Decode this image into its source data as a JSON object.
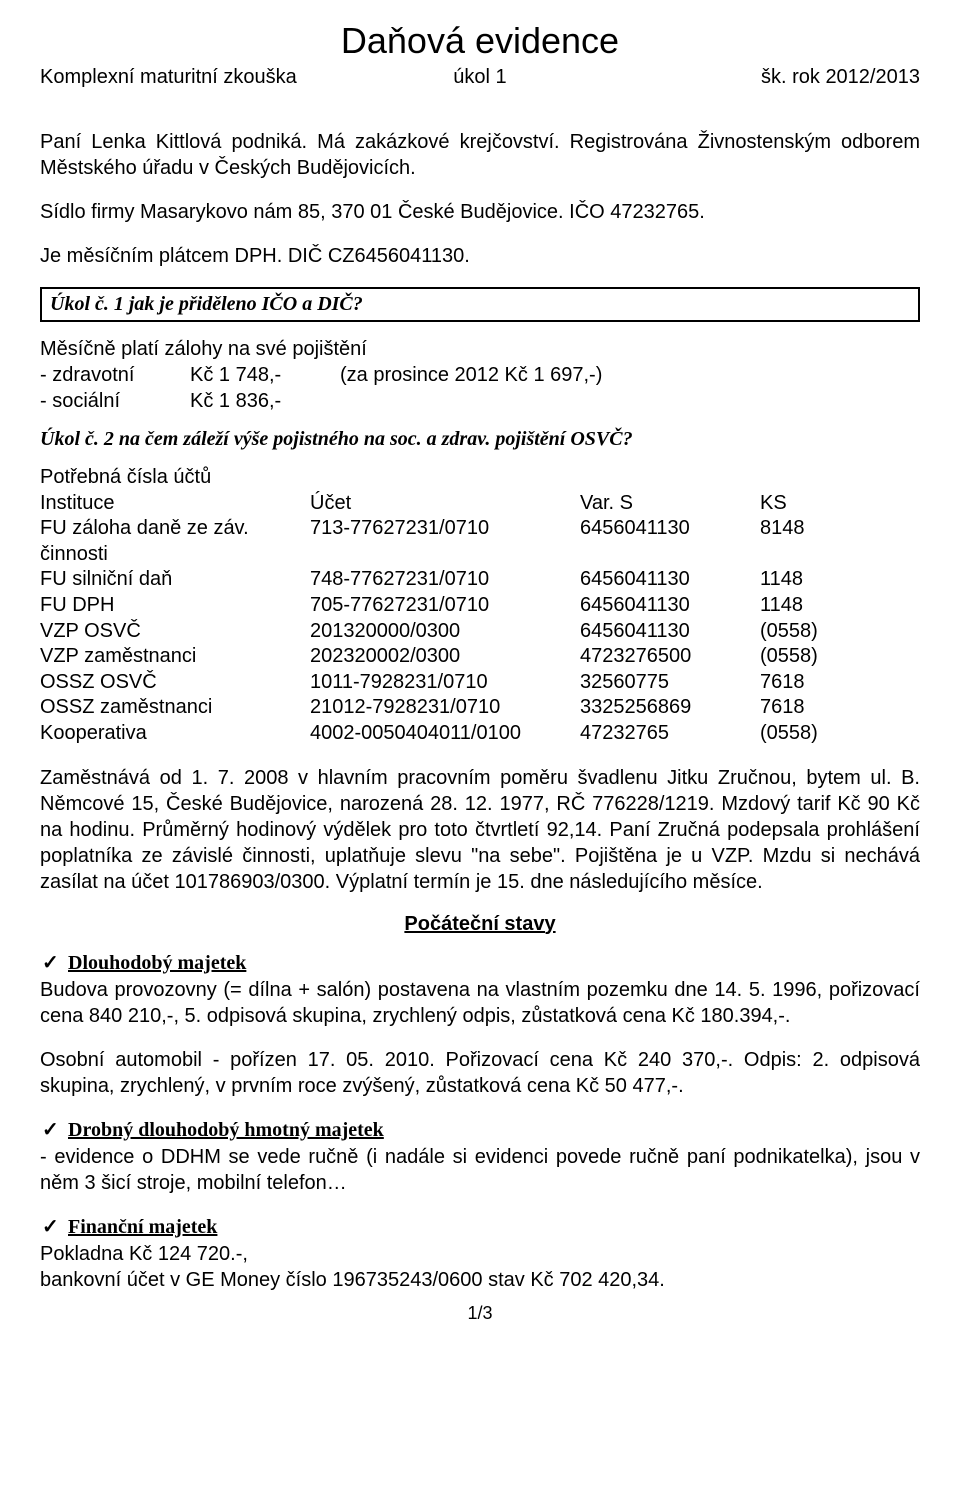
{
  "title": "Daňová evidence",
  "header": {
    "left": "Komplexní maturitní zkouška",
    "mid": "úkol 1",
    "right": "šk. rok 2012/2013"
  },
  "intro": {
    "p1": "Paní Lenka Kittlová podniká. Má zakázkové krejčovství. Registrována Živnostenským odborem Městského úřadu v Českých Budějovicích.",
    "p2": "Sídlo firmy Masarykovo nám 85, 370 01 České Budějovice. IČO 47232765.",
    "p3": "Je měsíčním plátcem DPH. DIČ CZ6456041130."
  },
  "task1": "Úkol č. 1 jak je přiděleno IČO a DIČ?",
  "zalohy": {
    "intro": "Měsíčně platí zálohy na své pojištění",
    "rows": [
      {
        "label": "- zdravotní",
        "amount": "Kč 1 748,-",
        "note": "(za prosince 2012 Kč 1 697,-)"
      },
      {
        "label": "- sociální",
        "amount": "Kč 1 836,-",
        "note": ""
      }
    ]
  },
  "task2": "Úkol č. 2 na čem záleží výše pojistného na soc. a zdrav. pojištění OSVČ?",
  "accounts": {
    "intro": "Potřebná čísla účtů",
    "header": {
      "a": "Instituce",
      "b": "Účet",
      "c": "Var. S",
      "d": "KS"
    },
    "rows": [
      {
        "a": "FU záloha daně ze záv. činnosti",
        "b": "713-77627231/0710",
        "c": "6456041130",
        "d": "8148"
      },
      {
        "a": "FU silniční daň",
        "b": "748-77627231/0710",
        "c": "6456041130",
        "d": "1148"
      },
      {
        "a": "FU DPH",
        "b": "705-77627231/0710",
        "c": "6456041130",
        "d": "1148"
      },
      {
        "a": "VZP OSVČ",
        "b": "201320000/0300",
        "c": "6456041130",
        "d": "(0558)"
      },
      {
        "a": "VZP zaměstnanci",
        "b": "202320002/0300",
        "c": "4723276500",
        "d": "(0558)"
      },
      {
        "a": "OSSZ OSVČ",
        "b": "1011-7928231/0710",
        "c": "32560775",
        "d": "7618"
      },
      {
        "a": "OSSZ zaměstnanci",
        "b": "21012-7928231/0710",
        "c": "3325256869",
        "d": "7618"
      },
      {
        "a": "Kooperativa",
        "b": "4002-0050404011/0100",
        "c": "47232765",
        "d": "(0558)"
      }
    ]
  },
  "employment": "Zaměstnává od 1. 7. 2008 v hlavním pracovním poměru švadlenu Jitku Zručnou, bytem ul. B. Němcové 15, České Budějovice, narozená 28. 12. 1977,  RČ 776228/1219. Mzdový tarif Kč 90 Kč na hodinu. Průměrný hodinový výdělek pro toto čtvrtletí 92,14. Paní Zručná podepsala prohlášení poplatníka ze závislé činnosti, uplatňuje slevu \"na sebe\". Pojištěna je u VZP.  Mzdu si nechává zasílat na účet 101786903/0300. Výplatní termín je 15. dne následujícího měsíce.",
  "section_heading": "Počáteční stavy",
  "dlouhodoby": {
    "title": "Dlouhodobý majetek",
    "p1": "Budova  provozovny (= dílna + salón)  postavena na vlastním pozemku dne 14. 5.  1996, pořizovací cena   840 210,-, 5. odpisová skupina, zrychlený odpis, zůstatková cena Kč 180.394,-.",
    "p2": "Osobní  automobil - pořízen 17. 05. 2010. Pořizovací cena Kč 240 370,-. Odpis: 2. odpisová skupina,  zrychlený, v prvním roce zvýšený, zůstatková cena Kč 50 477,-."
  },
  "drobny": {
    "title": "Drobný dlouhodobý hmotný majetek",
    "p": "- evidence o DDHM se vede ručně (i nadále si evidenci povede ručně paní podnikatelka), jsou v něm 3 šicí stroje, mobilní telefon…"
  },
  "financni": {
    "title": "Finanční majetek",
    "l1": "Pokladna Kč  124 720.-,",
    "l2": "bankovní účet v GE Money číslo 196735243/0600 stav Kč 702 420,34."
  },
  "page_num": "1/3",
  "check_mark": "✓"
}
